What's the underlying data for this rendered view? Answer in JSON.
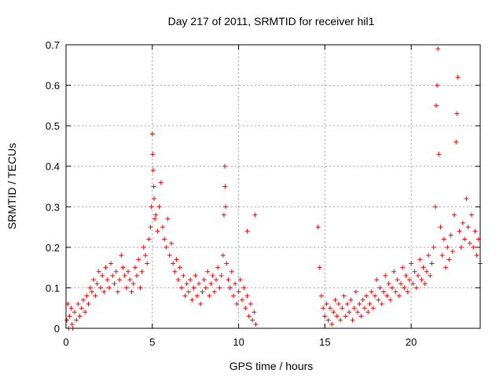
{
  "chart_data": {
    "type": "scatter",
    "title": "Day 217 of 2011, SRMTID for receiver hil1",
    "xlabel": "GPS time / hours",
    "ylabel": "SRMTID / TECUs",
    "xlim": [
      0,
      24
    ],
    "ylim": [
      0,
      0.7
    ],
    "x_ticks": [
      0,
      5,
      10,
      15,
      20
    ],
    "y_ticks": [
      0,
      0.1,
      0.2,
      0.3,
      0.4,
      0.5,
      0.6,
      0.7
    ],
    "x_tick_labels": [
      "0",
      "5",
      "10",
      "15",
      "20"
    ],
    "y_tick_labels": [
      "0",
      "0.1",
      "0.2",
      "0.3",
      "0.4",
      "0.5",
      "0.6",
      "0.7"
    ],
    "grid": true,
    "marker": "+",
    "color": "#ff0000",
    "series": [
      {
        "name": "SRMTID",
        "points": [
          [
            0.05,
            0.02
          ],
          [
            0.1,
            0.06
          ],
          [
            0.15,
            0.0
          ],
          [
            0.2,
            0.03
          ],
          [
            0.3,
            0.05
          ],
          [
            0.35,
            0.01
          ],
          [
            0.4,
            0.0
          ],
          [
            0.5,
            0.04
          ],
          [
            0.6,
            0.02
          ],
          [
            0.7,
            0.06
          ],
          [
            0.8,
            0.03
          ],
          [
            0.9,
            0.05
          ],
          [
            1.0,
            0.07
          ],
          [
            1.1,
            0.04
          ],
          [
            1.2,
            0.08
          ],
          [
            1.3,
            0.06
          ],
          [
            1.4,
            0.1
          ],
          [
            1.5,
            0.09
          ],
          [
            1.6,
            0.12
          ],
          [
            1.7,
            0.08
          ],
          [
            1.8,
            0.11
          ],
          [
            1.9,
            0.14
          ],
          [
            2.0,
            0.1
          ],
          [
            2.1,
            0.13
          ],
          [
            2.2,
            0.09
          ],
          [
            2.3,
            0.15
          ],
          [
            2.4,
            0.12
          ],
          [
            2.5,
            0.1
          ],
          [
            2.6,
            0.16
          ],
          [
            2.7,
            0.13
          ],
          [
            2.8,
            0.11
          ],
          [
            2.9,
            0.14
          ],
          [
            3.0,
            0.09
          ],
          [
            3.1,
            0.12
          ],
          [
            3.2,
            0.18
          ],
          [
            3.3,
            0.15
          ],
          [
            3.4,
            0.13
          ],
          [
            3.5,
            0.1
          ],
          [
            3.6,
            0.14
          ],
          [
            3.7,
            0.12
          ],
          [
            3.8,
            0.09
          ],
          [
            3.9,
            0.11
          ],
          [
            4.0,
            0.15
          ],
          [
            4.1,
            0.13
          ],
          [
            4.2,
            0.17
          ],
          [
            4.3,
            0.1
          ],
          [
            4.4,
            0.14
          ],
          [
            4.5,
            0.2
          ],
          [
            4.6,
            0.18
          ],
          [
            4.7,
            0.16
          ],
          [
            4.8,
            0.22
          ],
          [
            4.9,
            0.25
          ],
          [
            4.95,
            0.3
          ],
          [
            5.0,
            0.48
          ],
          [
            5.02,
            0.43
          ],
          [
            5.05,
            0.39
          ],
          [
            5.08,
            0.35
          ],
          [
            5.1,
            0.32
          ],
          [
            5.15,
            0.27
          ],
          [
            5.2,
            0.28
          ],
          [
            5.3,
            0.24
          ],
          [
            5.4,
            0.3
          ],
          [
            5.5,
            0.36
          ],
          [
            5.6,
            0.25
          ],
          [
            5.7,
            0.22
          ],
          [
            5.8,
            0.2
          ],
          [
            5.9,
            0.27
          ],
          [
            6.0,
            0.18
          ],
          [
            6.1,
            0.21
          ],
          [
            6.2,
            0.16
          ],
          [
            6.3,
            0.14
          ],
          [
            6.4,
            0.17
          ],
          [
            6.5,
            0.12
          ],
          [
            6.6,
            0.15
          ],
          [
            6.7,
            0.1
          ],
          [
            6.8,
            0.13
          ],
          [
            6.9,
            0.08
          ],
          [
            7.0,
            0.11
          ],
          [
            7.1,
            0.09
          ],
          [
            7.2,
            0.12
          ],
          [
            7.3,
            0.07
          ],
          [
            7.4,
            0.1
          ],
          [
            7.5,
            0.13
          ],
          [
            7.6,
            0.08
          ],
          [
            7.7,
            0.11
          ],
          [
            7.8,
            0.06
          ],
          [
            7.9,
            0.09
          ],
          [
            8.0,
            0.12
          ],
          [
            8.1,
            0.1
          ],
          [
            8.2,
            0.14
          ],
          [
            8.3,
            0.08
          ],
          [
            8.4,
            0.11
          ],
          [
            8.5,
            0.13
          ],
          [
            8.6,
            0.09
          ],
          [
            8.7,
            0.12
          ],
          [
            8.8,
            0.15
          ],
          [
            8.9,
            0.1
          ],
          [
            9.0,
            0.13
          ],
          [
            9.1,
            0.18
          ],
          [
            9.15,
            0.28
          ],
          [
            9.2,
            0.4
          ],
          [
            9.22,
            0.35
          ],
          [
            9.25,
            0.3
          ],
          [
            9.3,
            0.16
          ],
          [
            9.4,
            0.12
          ],
          [
            9.5,
            0.1
          ],
          [
            9.6,
            0.14
          ],
          [
            9.7,
            0.08
          ],
          [
            9.8,
            0.11
          ],
          [
            9.9,
            0.06
          ],
          [
            10.0,
            0.09
          ],
          [
            10.1,
            0.12
          ],
          [
            10.2,
            0.07
          ],
          [
            10.3,
            0.1
          ],
          [
            10.4,
            0.05
          ],
          [
            10.5,
            0.08
          ],
          [
            10.6,
            0.03
          ],
          [
            10.7,
            0.06
          ],
          [
            10.8,
            0.02
          ],
          [
            10.9,
            0.04
          ],
          [
            11.0,
            0.01
          ],
          [
            10.5,
            0.24
          ],
          [
            10.95,
            0.28
          ],
          [
            14.6,
            0.25
          ],
          [
            14.7,
            0.15
          ],
          [
            14.8,
            0.08
          ],
          [
            14.9,
            0.05
          ],
          [
            15.0,
            0.03
          ],
          [
            15.1,
            0.06
          ],
          [
            15.2,
            0.02
          ],
          [
            15.3,
            0.05
          ],
          [
            15.4,
            0.01
          ],
          [
            15.5,
            0.04
          ],
          [
            15.6,
            0.07
          ],
          [
            15.7,
            0.03
          ],
          [
            15.8,
            0.06
          ],
          [
            15.9,
            0.02
          ],
          [
            16.0,
            0.05
          ],
          [
            16.1,
            0.08
          ],
          [
            16.2,
            0.03
          ],
          [
            16.3,
            0.06
          ],
          [
            16.4,
            0.04
          ],
          [
            16.5,
            0.07
          ],
          [
            16.6,
            0.02
          ],
          [
            16.7,
            0.05
          ],
          [
            16.8,
            0.09
          ],
          [
            16.9,
            0.04
          ],
          [
            17.0,
            0.06
          ],
          [
            17.1,
            0.03
          ],
          [
            17.2,
            0.07
          ],
          [
            17.3,
            0.05
          ],
          [
            17.4,
            0.08
          ],
          [
            17.5,
            0.04
          ],
          [
            17.6,
            0.06
          ],
          [
            17.7,
            0.09
          ],
          [
            17.8,
            0.05
          ],
          [
            17.9,
            0.08
          ],
          [
            18.0,
            0.12
          ],
          [
            18.1,
            0.07
          ],
          [
            18.2,
            0.1
          ],
          [
            18.3,
            0.06
          ],
          [
            18.4,
            0.09
          ],
          [
            18.5,
            0.13
          ],
          [
            18.6,
            0.08
          ],
          [
            18.7,
            0.11
          ],
          [
            18.8,
            0.07
          ],
          [
            18.9,
            0.1
          ],
          [
            19.0,
            0.14
          ],
          [
            19.1,
            0.09
          ],
          [
            19.2,
            0.12
          ],
          [
            19.3,
            0.08
          ],
          [
            19.4,
            0.11
          ],
          [
            19.5,
            0.15
          ],
          [
            19.6,
            0.1
          ],
          [
            19.7,
            0.13
          ],
          [
            19.8,
            0.09
          ],
          [
            19.9,
            0.12
          ],
          [
            20.0,
            0.16
          ],
          [
            20.1,
            0.11
          ],
          [
            20.2,
            0.14
          ],
          [
            20.3,
            0.1
          ],
          [
            20.4,
            0.13
          ],
          [
            20.5,
            0.17
          ],
          [
            20.6,
            0.12
          ],
          [
            20.7,
            0.15
          ],
          [
            20.8,
            0.11
          ],
          [
            20.9,
            0.14
          ],
          [
            21.0,
            0.18
          ],
          [
            21.1,
            0.13
          ],
          [
            21.2,
            0.16
          ],
          [
            21.3,
            0.2
          ],
          [
            21.4,
            0.3
          ],
          [
            21.45,
            0.55
          ],
          [
            21.5,
            0.6
          ],
          [
            21.55,
            0.69
          ],
          [
            21.6,
            0.43
          ],
          [
            21.7,
            0.25
          ],
          [
            21.8,
            0.18
          ],
          [
            21.9,
            0.22
          ],
          [
            22.0,
            0.15
          ],
          [
            22.1,
            0.2
          ],
          [
            22.2,
            0.17
          ],
          [
            22.3,
            0.23
          ],
          [
            22.4,
            0.19
          ],
          [
            22.5,
            0.28
          ],
          [
            22.6,
            0.46
          ],
          [
            22.65,
            0.53
          ],
          [
            22.7,
            0.62
          ],
          [
            22.8,
            0.24
          ],
          [
            22.9,
            0.2
          ],
          [
            23.0,
            0.26
          ],
          [
            23.1,
            0.22
          ],
          [
            23.2,
            0.32
          ],
          [
            23.3,
            0.25
          ],
          [
            23.4,
            0.21
          ],
          [
            23.5,
            0.28
          ],
          [
            23.6,
            0.2
          ],
          [
            23.7,
            0.24
          ],
          [
            23.8,
            0.18
          ],
          [
            23.9,
            0.22
          ],
          [
            24.0,
            0.16
          ]
        ]
      }
    ]
  }
}
